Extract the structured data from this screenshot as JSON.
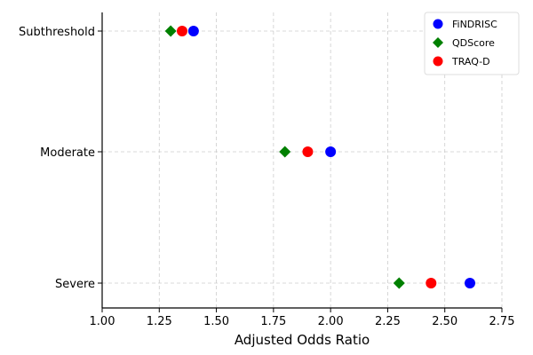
{
  "chart_data": {
    "type": "scatter",
    "title": "",
    "xlabel": "Adjusted Odds Ratio",
    "ylabel": "",
    "xlim": [
      1.0,
      2.75
    ],
    "x_ticks": [
      "1.00",
      "1.25",
      "1.50",
      "1.75",
      "2.00",
      "2.25",
      "2.50",
      "2.75"
    ],
    "categories": [
      "Subthreshold",
      "Moderate",
      "Severe"
    ],
    "grid": true,
    "legend_position": "top-right",
    "series": [
      {
        "name": "FiNDRISC",
        "marker": "circle",
        "color": "#0000ff",
        "values": [
          1.4,
          2.0,
          2.61
        ]
      },
      {
        "name": "QDScore",
        "marker": "diamond",
        "color": "#008000",
        "values": [
          1.3,
          1.8,
          2.3
        ]
      },
      {
        "name": "TRAQ-D",
        "marker": "circle",
        "color": "#ff0000",
        "values": [
          1.35,
          1.9,
          2.44
        ]
      }
    ]
  }
}
